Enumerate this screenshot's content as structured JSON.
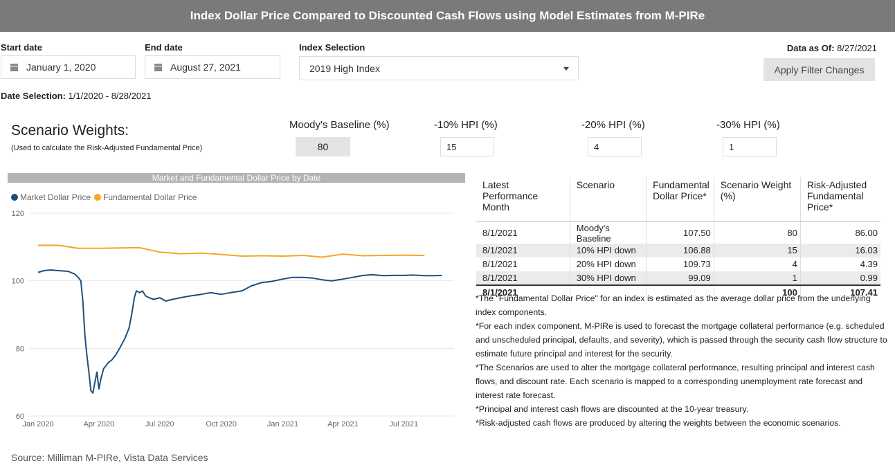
{
  "header": {
    "title": "Index Dollar Price Compared to Discounted Cash Flows using Model Estimates from M-PIRe"
  },
  "filters": {
    "start_label": "Start date",
    "start_value": "January 1, 2020",
    "end_label": "End date",
    "end_value": "August 27, 2021",
    "index_label": "Index Selection",
    "index_value": "2019 High Index",
    "data_asof_label": "Data as Of:",
    "data_asof_value": "8/27/2021",
    "apply_label": "Apply Filter Changes",
    "date_sel_label": "Date Selection:",
    "date_sel_value": "1/1/2020 - 8/28/2021"
  },
  "scenario_weights": {
    "title": "Scenario Weights:",
    "subtitle": "(Used to calculate the Risk-Adjusted Fundamental Price)",
    "columns": [
      {
        "label": "Moody's Baseline (%)",
        "value": "80"
      },
      {
        "label": "-10% HPI (%)",
        "value": "15"
      },
      {
        "label": "-20% HPI (%)",
        "value": "4"
      },
      {
        "label": "-30% HPI (%)",
        "value": "1"
      }
    ]
  },
  "chart_title": "Market and Fundamental Dollar Price by Date",
  "colors": {
    "market": "#1f4e79",
    "fundamental": "#f5a623",
    "title_bar": "#7a7a7a"
  },
  "chart_data": {
    "type": "line",
    "title": "Market and Fundamental Dollar Price by Date",
    "ylim": [
      60,
      120
    ],
    "yticks": [
      "120",
      "100",
      "80",
      "60"
    ],
    "xticks": [
      "Jan 2020",
      "Apr 2020",
      "Jul 2020",
      "Oct 2020",
      "Jan 2021",
      "Apr 2021",
      "Jul 2021"
    ],
    "grid": "horizontal",
    "legend": "top-left",
    "series": [
      {
        "name": "Market Dollar Price",
        "points": [
          [
            "2020-01-01",
            102.5
          ],
          [
            "2020-01-10",
            103.0
          ],
          [
            "2020-01-20",
            103.2
          ],
          [
            "2020-02-01",
            103.0
          ],
          [
            "2020-02-15",
            102.8
          ],
          [
            "2020-02-25",
            102.0
          ],
          [
            "2020-03-01",
            101.0
          ],
          [
            "2020-03-05",
            100.0
          ],
          [
            "2020-03-08",
            94.0
          ],
          [
            "2020-03-11",
            84.0
          ],
          [
            "2020-03-14",
            78.0
          ],
          [
            "2020-03-17",
            73.0
          ],
          [
            "2020-03-20",
            67.5
          ],
          [
            "2020-03-23",
            66.8
          ],
          [
            "2020-03-26",
            70.0
          ],
          [
            "2020-03-29",
            73.0
          ],
          [
            "2020-04-01",
            68.0
          ],
          [
            "2020-04-04",
            71.0
          ],
          [
            "2020-04-08",
            74.0
          ],
          [
            "2020-04-12",
            75.0
          ],
          [
            "2020-04-16",
            76.0
          ],
          [
            "2020-04-20",
            76.5
          ],
          [
            "2020-04-26",
            78.0
          ],
          [
            "2020-05-02",
            80.0
          ],
          [
            "2020-05-10",
            83.0
          ],
          [
            "2020-05-16",
            86.0
          ],
          [
            "2020-05-20",
            90.0
          ],
          [
            "2020-05-24",
            95.0
          ],
          [
            "2020-05-27",
            97.0
          ],
          [
            "2020-06-01",
            96.5
          ],
          [
            "2020-06-05",
            97.0
          ],
          [
            "2020-06-10",
            95.5
          ],
          [
            "2020-06-15",
            95.0
          ],
          [
            "2020-06-22",
            94.5
          ],
          [
            "2020-07-01",
            95.0
          ],
          [
            "2020-07-10",
            94.0
          ],
          [
            "2020-07-20",
            94.5
          ],
          [
            "2020-08-01",
            95.0
          ],
          [
            "2020-08-15",
            95.5
          ],
          [
            "2020-09-01",
            96.0
          ],
          [
            "2020-09-15",
            96.5
          ],
          [
            "2020-10-01",
            96.0
          ],
          [
            "2020-10-15",
            96.5
          ],
          [
            "2020-11-01",
            97.0
          ],
          [
            "2020-11-15",
            98.5
          ],
          [
            "2020-12-01",
            99.5
          ],
          [
            "2020-12-15",
            99.8
          ],
          [
            "2021-01-01",
            100.5
          ],
          [
            "2021-01-15",
            101.0
          ],
          [
            "2021-02-01",
            101.0
          ],
          [
            "2021-02-15",
            100.8
          ],
          [
            "2021-03-01",
            100.3
          ],
          [
            "2021-03-15",
            100.0
          ],
          [
            "2021-04-01",
            100.5
          ],
          [
            "2021-04-15",
            101.0
          ],
          [
            "2021-05-01",
            101.6
          ],
          [
            "2021-05-15",
            101.8
          ],
          [
            "2021-06-01",
            101.5
          ],
          [
            "2021-06-15",
            101.6
          ],
          [
            "2021-07-01",
            101.6
          ],
          [
            "2021-07-15",
            101.7
          ],
          [
            "2021-08-01",
            101.5
          ],
          [
            "2021-08-15",
            101.5
          ],
          [
            "2021-08-27",
            101.6
          ]
        ]
      },
      {
        "name": "Fundamental Dollar Price",
        "points": [
          [
            "2020-01-01",
            110.5
          ],
          [
            "2020-02-01",
            110.5
          ],
          [
            "2020-03-01",
            109.6
          ],
          [
            "2020-04-01",
            109.6
          ],
          [
            "2020-05-01",
            109.7
          ],
          [
            "2020-06-01",
            109.8
          ],
          [
            "2020-07-01",
            108.5
          ],
          [
            "2020-08-01",
            108.0
          ],
          [
            "2020-09-01",
            108.2
          ],
          [
            "2020-10-01",
            107.8
          ],
          [
            "2020-11-01",
            107.3
          ],
          [
            "2020-12-01",
            107.4
          ],
          [
            "2021-01-01",
            107.3
          ],
          [
            "2021-02-01",
            107.5
          ],
          [
            "2021-03-01",
            107.0
          ],
          [
            "2021-04-01",
            107.9
          ],
          [
            "2021-05-01",
            107.4
          ],
          [
            "2021-06-01",
            107.5
          ],
          [
            "2021-07-01",
            107.6
          ],
          [
            "2021-08-01",
            107.5
          ]
        ]
      }
    ]
  },
  "table": {
    "headers": [
      "Latest Performance Month",
      "Scenario",
      "Fundamental Dollar Price*",
      "Scenario Weight (%)",
      "Risk-Adjusted Fundamental Price*"
    ],
    "rows": [
      [
        "8/1/2021",
        "Moody's Baseline",
        "107.50",
        "80",
        "86.00"
      ],
      [
        "8/1/2021",
        "10% HPI down",
        "106.88",
        "15",
        "16.03"
      ],
      [
        "8/1/2021",
        "20% HPI down",
        "109.73",
        "4",
        "4.39"
      ],
      [
        "8/1/2021",
        "30% HPI down",
        "99.09",
        "1",
        "0.99"
      ]
    ],
    "total": [
      "8/1/2021",
      "",
      "",
      "100",
      "107.41"
    ]
  },
  "notes": [
    "*The \"Fundamental Dollar Price\" for an index is estimated as the average dollar price from the underlying index components.",
    "*For each index component, M-PIRe is used to forecast the mortgage collateral performance (e.g. scheduled and unscheduled principal, defaults, and severity), which is passed through the security cash flow structure to estimate future principal and interest for the security.",
    "*The Scenarios are used to alter the mortgage collateral performance, resulting principal and interest cash flows, and discount rate. Each scenario is mapped to a corresponding unemployment rate forecast and interest rate forecast.",
    "*Principal and interest cash flows are discounted at the 10-year treasury.",
    "*Risk-adjusted cash flows are produced by altering the weights between the economic scenarios."
  ],
  "source": "Source: Milliman M-PIRe, Vista Data Services"
}
